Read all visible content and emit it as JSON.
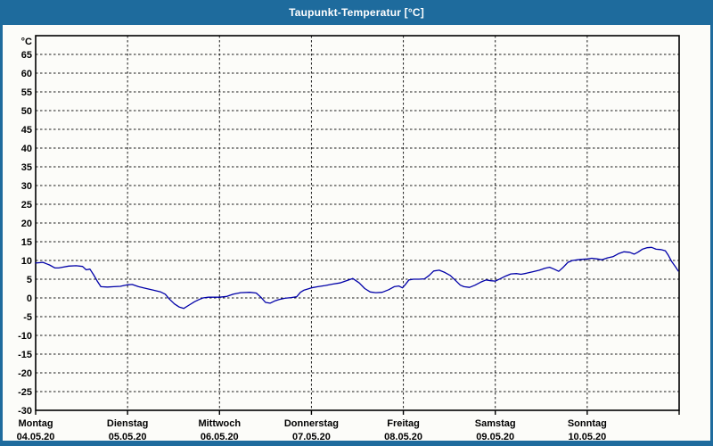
{
  "window": {
    "title": "Taupunkt-Temperatur [°C]",
    "colors": {
      "titlebar": "#1e6b9d",
      "titlebar_text": "#ffffff",
      "content_bg": "#fcfcf9",
      "frame": "#000000",
      "grid": "#1c1c1c",
      "line": "#0000a8",
      "label_text": "#000000"
    }
  },
  "chart_data": {
    "type": "line",
    "title": "Taupunkt-Temperatur [°C]",
    "ylabel": "°C",
    "ylim": [
      -30,
      70
    ],
    "y_tick_step": 5,
    "y_ticks": [
      65,
      60,
      55,
      50,
      45,
      40,
      35,
      30,
      25,
      20,
      15,
      10,
      5,
      0,
      -5,
      -10,
      -15,
      -20,
      -25,
      -30
    ],
    "grid": "dashed",
    "legend": "none",
    "x_axis": {
      "range_days": 7,
      "days": [
        {
          "name": "Montag",
          "date": "04.05.20"
        },
        {
          "name": "Dienstag",
          "date": "05.05.20"
        },
        {
          "name": "Mittwoch",
          "date": "06.05.20"
        },
        {
          "name": "Donnerstag",
          "date": "07.05.20"
        },
        {
          "name": "Freitag",
          "date": "08.05.20"
        },
        {
          "name": "Samstag",
          "date": "09.05.20"
        },
        {
          "name": "Sonntag",
          "date": "10.05.20"
        }
      ]
    },
    "series": [
      {
        "name": "Taupunkt-Temperatur",
        "color": "#0000a8",
        "points": [
          [
            0.0,
            9.3
          ],
          [
            0.04,
            9.4
          ],
          [
            0.08,
            9.5
          ],
          [
            0.12,
            9.1
          ],
          [
            0.15,
            8.8
          ],
          [
            0.21,
            8.0
          ],
          [
            0.25,
            8.0
          ],
          [
            0.29,
            8.2
          ],
          [
            0.36,
            8.5
          ],
          [
            0.44,
            8.6
          ],
          [
            0.51,
            8.4
          ],
          [
            0.55,
            7.5
          ],
          [
            0.59,
            7.7
          ],
          [
            0.63,
            6.2
          ],
          [
            0.67,
            4.5
          ],
          [
            0.71,
            3.0
          ],
          [
            0.78,
            2.9
          ],
          [
            0.85,
            3.0
          ],
          [
            0.92,
            3.1
          ],
          [
            1.0,
            3.5
          ],
          [
            1.05,
            3.6
          ],
          [
            1.12,
            3.0
          ],
          [
            1.19,
            2.6
          ],
          [
            1.28,
            2.1
          ],
          [
            1.36,
            1.6
          ],
          [
            1.41,
            1.0
          ],
          [
            1.45,
            -0.2
          ],
          [
            1.51,
            -1.6
          ],
          [
            1.56,
            -2.4
          ],
          [
            1.61,
            -2.8
          ],
          [
            1.67,
            -1.9
          ],
          [
            1.73,
            -1.0
          ],
          [
            1.78,
            -0.4
          ],
          [
            1.82,
            0.0
          ],
          [
            1.88,
            0.2
          ],
          [
            2.0,
            0.2
          ],
          [
            2.08,
            0.4
          ],
          [
            2.15,
            1.0
          ],
          [
            2.23,
            1.4
          ],
          [
            2.33,
            1.5
          ],
          [
            2.4,
            1.3
          ],
          [
            2.45,
            0.2
          ],
          [
            2.5,
            -1.2
          ],
          [
            2.55,
            -1.4
          ],
          [
            2.6,
            -0.8
          ],
          [
            2.65,
            -0.4
          ],
          [
            2.71,
            -0.1
          ],
          [
            2.78,
            0.1
          ],
          [
            2.84,
            0.3
          ],
          [
            2.88,
            1.5
          ],
          [
            2.92,
            2.1
          ],
          [
            3.0,
            2.7
          ],
          [
            3.07,
            3.0
          ],
          [
            3.15,
            3.3
          ],
          [
            3.23,
            3.7
          ],
          [
            3.31,
            4.0
          ],
          [
            3.38,
            4.6
          ],
          [
            3.45,
            5.2
          ],
          [
            3.52,
            4.0
          ],
          [
            3.58,
            2.5
          ],
          [
            3.64,
            1.6
          ],
          [
            3.7,
            1.4
          ],
          [
            3.77,
            1.5
          ],
          [
            3.84,
            2.2
          ],
          [
            3.9,
            3.0
          ],
          [
            3.95,
            3.2
          ],
          [
            3.99,
            2.7
          ],
          [
            4.02,
            3.5
          ],
          [
            4.06,
            4.8
          ],
          [
            4.11,
            5.0
          ],
          [
            4.17,
            5.0
          ],
          [
            4.23,
            5.1
          ],
          [
            4.28,
            6.0
          ],
          [
            4.33,
            7.2
          ],
          [
            4.39,
            7.4
          ],
          [
            4.45,
            6.8
          ],
          [
            4.51,
            6.0
          ],
          [
            4.57,
            4.6
          ],
          [
            4.62,
            3.4
          ],
          [
            4.66,
            3.0
          ],
          [
            4.72,
            2.8
          ],
          [
            4.78,
            3.4
          ],
          [
            4.84,
            4.2
          ],
          [
            4.9,
            4.8
          ],
          [
            4.95,
            4.6
          ],
          [
            5.0,
            4.5
          ],
          [
            5.06,
            5.2
          ],
          [
            5.11,
            5.8
          ],
          [
            5.17,
            6.4
          ],
          [
            5.23,
            6.5
          ],
          [
            5.28,
            6.3
          ],
          [
            5.34,
            6.6
          ],
          [
            5.41,
            7.0
          ],
          [
            5.48,
            7.4
          ],
          [
            5.54,
            7.9
          ],
          [
            5.59,
            8.2
          ],
          [
            5.64,
            7.7
          ],
          [
            5.69,
            7.1
          ],
          [
            5.74,
            8.2
          ],
          [
            5.79,
            9.5
          ],
          [
            5.84,
            10.0
          ],
          [
            5.9,
            10.2
          ],
          [
            5.95,
            10.3
          ],
          [
            6.0,
            10.4
          ],
          [
            6.05,
            10.6
          ],
          [
            6.11,
            10.4
          ],
          [
            6.16,
            10.2
          ],
          [
            6.22,
            10.7
          ],
          [
            6.28,
            11.0
          ],
          [
            6.34,
            11.8
          ],
          [
            6.4,
            12.3
          ],
          [
            6.46,
            12.2
          ],
          [
            6.51,
            11.7
          ],
          [
            6.55,
            12.2
          ],
          [
            6.6,
            13.0
          ],
          [
            6.65,
            13.4
          ],
          [
            6.7,
            13.5
          ],
          [
            6.75,
            13.0
          ],
          [
            6.8,
            12.9
          ],
          [
            6.85,
            12.6
          ],
          [
            6.88,
            11.5
          ],
          [
            6.92,
            9.7
          ],
          [
            6.96,
            8.3
          ],
          [
            6.99,
            7.2
          ]
        ]
      }
    ]
  }
}
